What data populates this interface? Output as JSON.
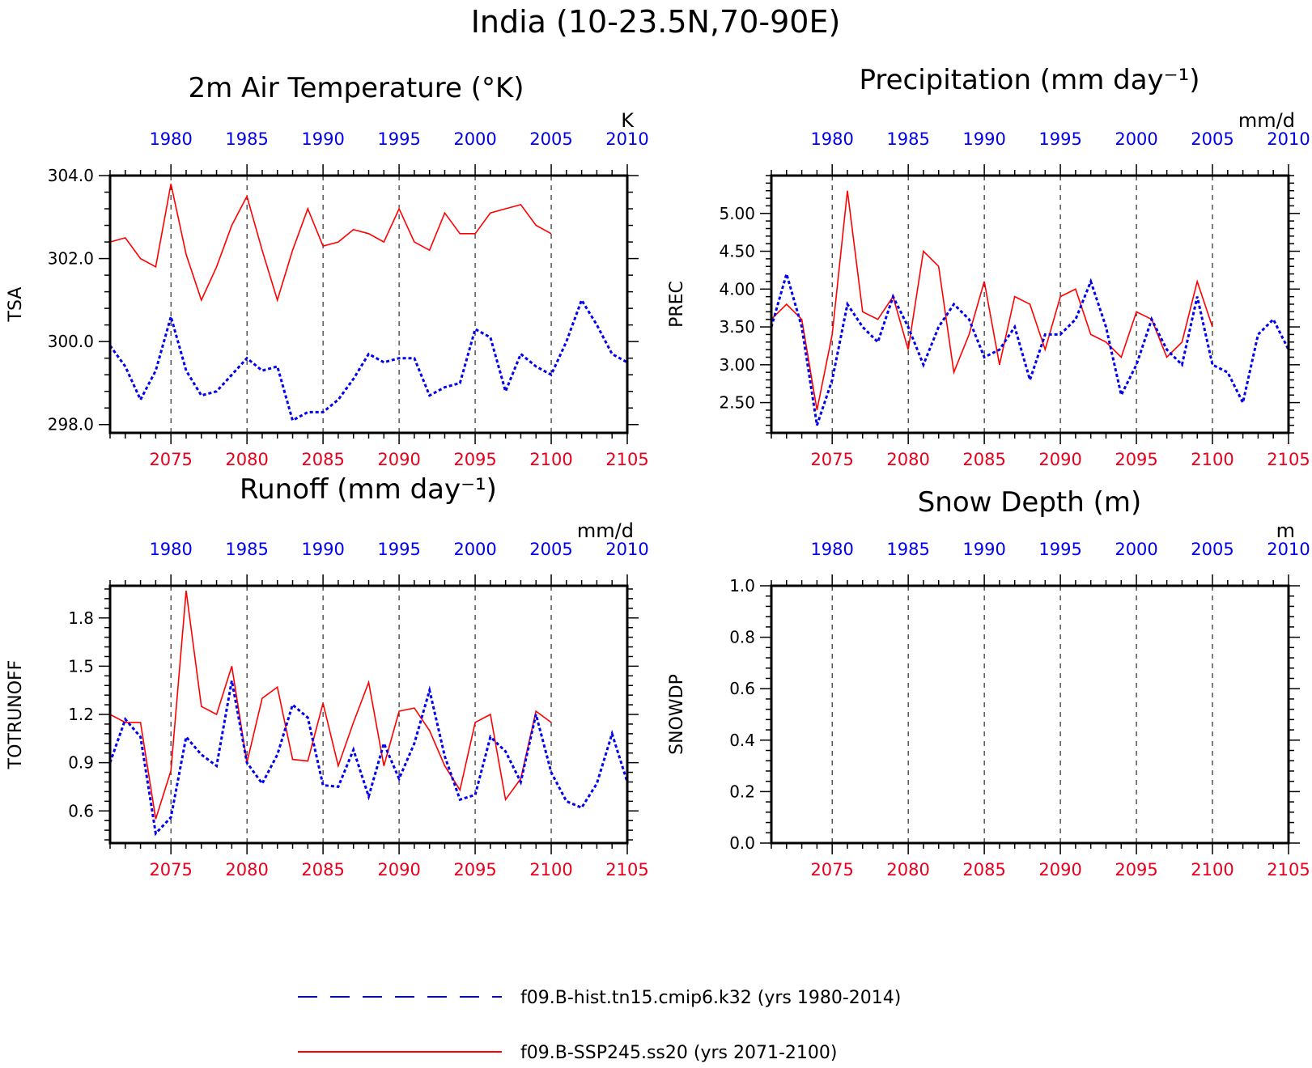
{
  "figure": {
    "title": "India (10-23.5N,70-90E)",
    "legend": {
      "hist": {
        "label": "f09.B-hist.tn15.cmip6.k32 (yrs 1980-2014)",
        "color": "#0000ee",
        "style": "dashed"
      },
      "ssp": {
        "label": "f09.B-SSP245.ss20 (yrs 2071-2100)",
        "color": "#ff0000",
        "style": "solid"
      }
    }
  },
  "colors": {
    "hist": "#0000ee",
    "ssp": "#ff0000",
    "bottom_ticks": "#e8001c",
    "top_ticks": "#0000ee"
  },
  "axes_common": {
    "bottom_ticks": [
      "2075",
      "2080",
      "2085",
      "2090",
      "2095",
      "2100",
      "2105"
    ],
    "top_ticks": [
      "1980",
      "1985",
      "1990",
      "1995",
      "2000",
      "2005",
      "2010"
    ],
    "bottom_range": [
      2071,
      2105
    ],
    "top_range": [
      1976,
      2010
    ]
  },
  "chart_data": [
    {
      "type": "line",
      "title": "2m Air Temperature (°K)",
      "ylabel": "TSA",
      "unit": "K",
      "ylim": [
        297.8,
        304.0
      ],
      "yticks": [
        "298.0",
        "300.0",
        "302.0",
        "304.0"
      ],
      "series": [
        {
          "name": "f09.B-SSP245.ss20 (yrs 2071-2100)",
          "x_start": 2071,
          "values": [
            302.4,
            302.5,
            302.0,
            301.8,
            303.8,
            302.1,
            301.0,
            301.8,
            302.8,
            303.5,
            302.2,
            301.0,
            302.2,
            303.2,
            302.3,
            302.4,
            302.7,
            302.6,
            302.4,
            303.2,
            302.4,
            302.2,
            303.1,
            302.6,
            302.6,
            303.1,
            303.2,
            303.3,
            302.8,
            302.6
          ]
        },
        {
          "name": "f09.B-hist.tn15.cmip6.k32 (yrs 1980-2014)",
          "x_start": 2071,
          "values": [
            299.9,
            299.4,
            298.6,
            299.3,
            300.6,
            299.3,
            298.7,
            298.8,
            299.2,
            299.6,
            299.3,
            299.4,
            298.1,
            298.3,
            298.3,
            298.6,
            299.1,
            299.7,
            299.5,
            299.6,
            299.6,
            298.7,
            298.9,
            299.0,
            300.3,
            300.1,
            298.8,
            299.7,
            299.4,
            299.2,
            300.0,
            301.0,
            300.4,
            299.7,
            299.5
          ]
        }
      ]
    },
    {
      "type": "line",
      "title": "Precipitation (mm day⁻¹)",
      "ylabel": "PREC",
      "unit": "mm/d",
      "ylim": [
        2.1,
        5.5
      ],
      "yticks": [
        "2.50",
        "3.00",
        "3.50",
        "4.00",
        "4.50",
        "5.00"
      ],
      "series": [
        {
          "name": "f09.B-SSP245.ss20 (yrs 2071-2100)",
          "x_start": 2071,
          "values": [
            3.6,
            3.8,
            3.6,
            2.4,
            3.4,
            5.3,
            3.7,
            3.6,
            3.9,
            3.2,
            4.5,
            4.3,
            2.9,
            3.4,
            4.1,
            3.0,
            3.9,
            3.8,
            3.2,
            3.9,
            4.0,
            3.4,
            3.3,
            3.1,
            3.7,
            3.6,
            3.1,
            3.3,
            4.1,
            3.5
          ]
        },
        {
          "name": "f09.B-hist.tn15.cmip6.k32 (yrs 1980-2014)",
          "x_start": 2071,
          "values": [
            3.5,
            4.2,
            3.5,
            2.2,
            2.8,
            3.8,
            3.5,
            3.3,
            3.9,
            3.5,
            3.0,
            3.5,
            3.8,
            3.6,
            3.1,
            3.2,
            3.5,
            2.8,
            3.4,
            3.4,
            3.6,
            4.1,
            3.5,
            2.6,
            3.0,
            3.6,
            3.2,
            3.0,
            3.9,
            3.0,
            2.9,
            2.5,
            3.4,
            3.6,
            3.2
          ]
        }
      ]
    },
    {
      "type": "line",
      "title": "Runoff (mm day⁻¹)",
      "ylabel": "TOTRUNOFF",
      "unit": "mm/d",
      "ylim": [
        0.4,
        2.0
      ],
      "yticks": [
        "0.6",
        "0.9",
        "1.2",
        "1.5",
        "1.8"
      ],
      "series": [
        {
          "name": "f09.B-SSP245.ss20 (yrs 2071-2100)",
          "x_start": 2071,
          "values": [
            1.2,
            1.15,
            1.15,
            0.55,
            0.85,
            1.97,
            1.25,
            1.2,
            1.5,
            0.9,
            1.3,
            1.37,
            0.92,
            0.91,
            1.27,
            0.88,
            1.15,
            1.4,
            0.88,
            1.22,
            1.24,
            1.1,
            0.88,
            0.73,
            1.15,
            1.2,
            0.67,
            0.8,
            1.22,
            1.15
          ]
        },
        {
          "name": "f09.B-hist.tn15.cmip6.k32 (yrs 1980-2014)",
          "x_start": 2071,
          "values": [
            0.9,
            1.17,
            1.06,
            0.46,
            0.56,
            1.06,
            0.95,
            0.88,
            1.41,
            0.9,
            0.77,
            0.95,
            1.26,
            1.18,
            0.76,
            0.75,
            0.98,
            0.69,
            1.02,
            0.8,
            1.02,
            1.35,
            0.94,
            0.67,
            0.7,
            1.06,
            0.97,
            0.78,
            1.2,
            0.84,
            0.66,
            0.62,
            0.77,
            1.08,
            0.78
          ]
        }
      ]
    },
    {
      "type": "line",
      "title": "Snow Depth (m)",
      "ylabel": "SNOWDP",
      "unit": "m",
      "ylim": [
        0.0,
        1.0
      ],
      "yticks": [
        "0.0",
        "0.2",
        "0.4",
        "0.6",
        "0.8",
        "1.0"
      ],
      "series": []
    }
  ]
}
